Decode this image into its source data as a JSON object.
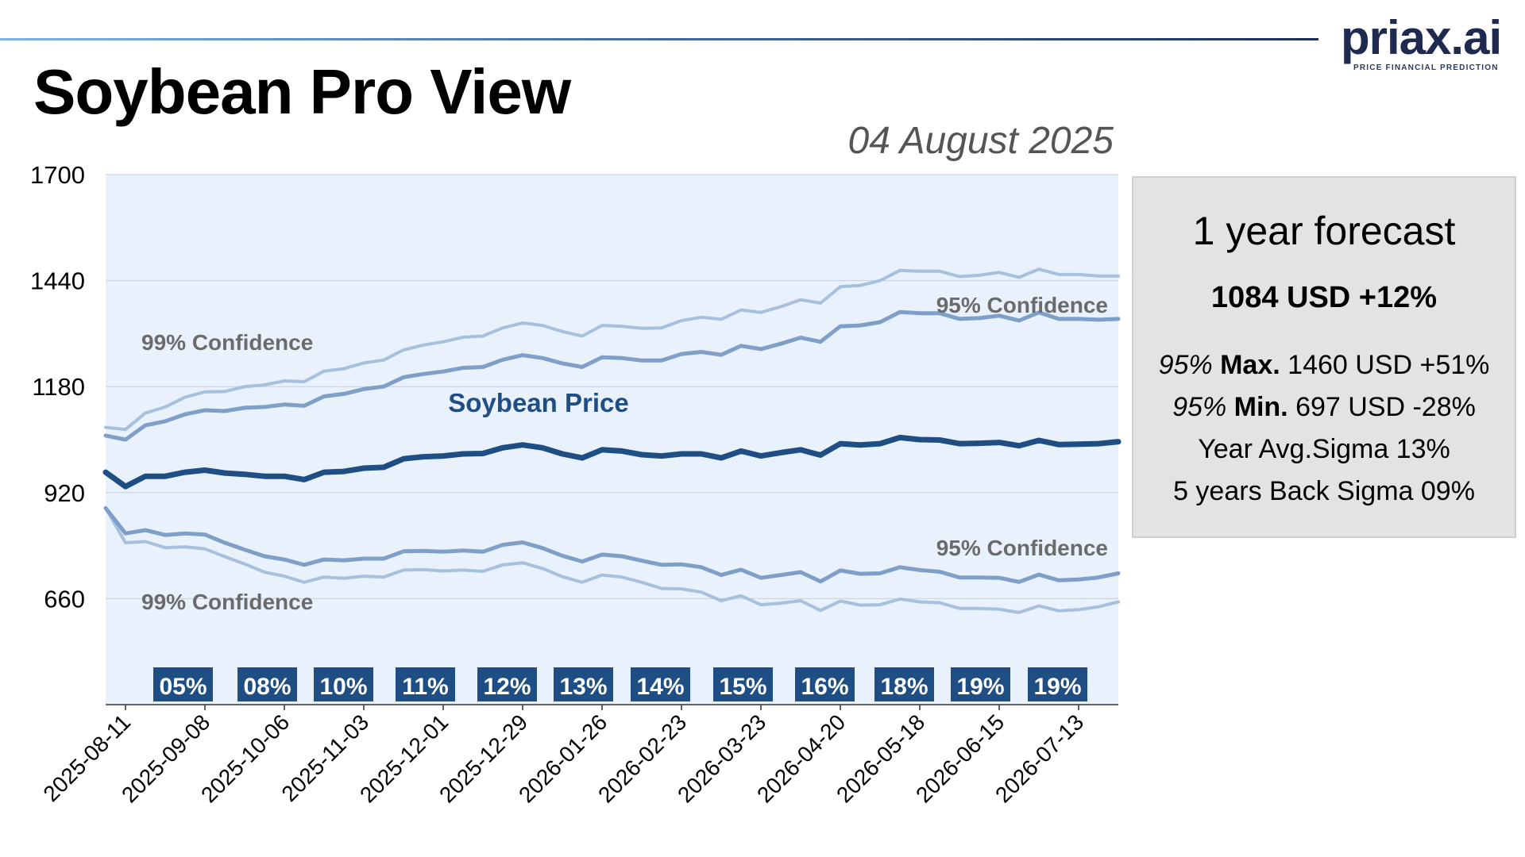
{
  "header": {
    "title": "Soybean Pro View",
    "date": "04 August 2025",
    "logo_text": "priax.ai",
    "logo_tagline": "PRICE FINANCIAL PREDICTION"
  },
  "panel": {
    "title": "1 year forecast",
    "main": "1084 USD +12%",
    "max_prefix": "95%",
    "max_label": "Max.",
    "max_value": "1460 USD +51%",
    "min_prefix": "95%",
    "min_label": "Min.",
    "min_value": "697 USD -28%",
    "avg_sigma": "Year Avg.Sigma 13%",
    "back_sigma": "5 years Back Sigma 09%"
  },
  "colors": {
    "plot_bg": "#e8f1fc",
    "price": "#1f4e85",
    "band95": "#7f9fc9",
    "band99": "#a7c0de",
    "sigma_box": "#1f4e85",
    "label_gray": "#6b6b6b"
  },
  "chart_data": {
    "type": "line",
    "y_ticks": [
      "1700",
      "1440",
      "1180",
      "920",
      "660"
    ],
    "ylim": [
      400,
      1700
    ],
    "x_tick_labels": [
      "2025-08-11",
      "2025-09-08",
      "2025-10-06",
      "2025-11-03",
      "2025-12-01",
      "2025-12-29",
      "2026-01-26",
      "2026-02-23",
      "2026-03-23",
      "2026-04-20",
      "2026-05-18",
      "2026-06-15",
      "2026-07-13"
    ],
    "x": [
      "2025-08-04",
      "2025-08-11",
      "2025-08-18",
      "2025-08-25",
      "2025-09-01",
      "2025-09-08",
      "2025-09-15",
      "2025-09-22",
      "2025-09-29",
      "2025-10-06",
      "2025-10-13",
      "2025-10-20",
      "2025-10-27",
      "2025-11-03",
      "2025-11-10",
      "2025-11-17",
      "2025-11-24",
      "2025-12-01",
      "2025-12-08",
      "2025-12-15",
      "2025-12-22",
      "2025-12-29",
      "2026-01-05",
      "2026-01-12",
      "2026-01-19",
      "2026-01-26",
      "2026-02-02",
      "2026-02-09",
      "2026-02-16",
      "2026-02-23",
      "2026-03-02",
      "2026-03-09",
      "2026-03-16",
      "2026-03-23",
      "2026-03-30",
      "2026-04-06",
      "2026-04-13",
      "2026-04-20",
      "2026-04-27",
      "2026-05-04",
      "2026-05-11",
      "2026-05-18",
      "2026-05-25",
      "2026-06-01",
      "2026-06-08",
      "2026-06-15",
      "2026-06-22",
      "2026-06-29",
      "2026-07-06",
      "2026-07-13",
      "2026-07-20",
      "2026-07-27"
    ],
    "series": [
      {
        "name": "Soybean Price",
        "values": [
          970,
          935,
          960,
          960,
          970,
          975,
          968,
          965,
          960,
          960,
          952,
          970,
          972,
          980,
          982,
          1003,
          1008,
          1010,
          1015,
          1016,
          1030,
          1037,
          1030,
          1015,
          1005,
          1025,
          1022,
          1013,
          1010,
          1015,
          1015,
          1005,
          1022,
          1010,
          1018,
          1025,
          1012,
          1040,
          1037,
          1040,
          1055,
          1050,
          1049,
          1040,
          1041,
          1043,
          1035,
          1048,
          1038,
          1039,
          1040,
          1045
        ]
      },
      {
        "name": "95% Confidence",
        "values": [
          1060,
          1050,
          1085,
          1095,
          1112,
          1122,
          1120,
          1128,
          1130,
          1136,
          1133,
          1156,
          1162,
          1174,
          1180,
          1203,
          1211,
          1217,
          1226,
          1228,
          1246,
          1257,
          1250,
          1237,
          1228,
          1252,
          1250,
          1244,
          1244,
          1260,
          1265,
          1258,
          1280,
          1272,
          1285,
          1300,
          1290,
          1328,
          1330,
          1338,
          1363,
          1360,
          1360,
          1346,
          1348,
          1354,
          1342,
          1362,
          1346,
          1346,
          1344,
          1346
        ]
      },
      {
        "name": "99% Confidence",
        "values": [
          1080,
          1075,
          1115,
          1130,
          1154,
          1167,
          1168,
          1180,
          1184,
          1194,
          1192,
          1218,
          1224,
          1238,
          1245,
          1270,
          1282,
          1290,
          1301,
          1304,
          1324,
          1336,
          1330,
          1315,
          1304,
          1330,
          1328,
          1323,
          1324,
          1342,
          1350,
          1345,
          1368,
          1362,
          1376,
          1393,
          1385,
          1425,
          1428,
          1440,
          1465,
          1463,
          1463,
          1450,
          1453,
          1460,
          1448,
          1468,
          1455,
          1455,
          1451,
          1451
        ]
      },
      {
        "name": "95% Confidence",
        "values": [
          882,
          820,
          828,
          816,
          820,
          817,
          797,
          780,
          764,
          756,
          743,
          756,
          754,
          758,
          758,
          776,
          777,
          775,
          778,
          775,
          792,
          798,
          784,
          765,
          751,
          768,
          764,
          753,
          743,
          744,
          737,
          718,
          731,
          711,
          718,
          725,
          702,
          729,
          721,
          722,
          737,
          730,
          726,
          712,
          712,
          711,
          701,
          719,
          705,
          707,
          712,
          722
        ]
      },
      {
        "name": "99% Confidence",
        "values": [
          882,
          797,
          800,
          785,
          787,
          782,
          763,
          745,
          725,
          715,
          700,
          713,
          710,
          715,
          713,
          730,
          731,
          728,
          730,
          727,
          743,
          748,
          734,
          714,
          700,
          718,
          713,
          700,
          685,
          684,
          676,
          655,
          667,
          645,
          649,
          655,
          631,
          654,
          644,
          645,
          659,
          652,
          650,
          636,
          636,
          634,
          626,
          642,
          630,
          633,
          640,
          652
        ]
      }
    ],
    "sigma_labels": [
      "05%",
      "08%",
      "10%",
      "11%",
      "12%",
      "13%",
      "14%",
      "15%",
      "16%",
      "18%",
      "19%",
      "19%"
    ],
    "annotations": [
      "99% Confidence",
      "95% Confidence",
      "Soybean Price",
      "95% Confidence",
      "99% Confidence"
    ],
    "grid": true
  }
}
